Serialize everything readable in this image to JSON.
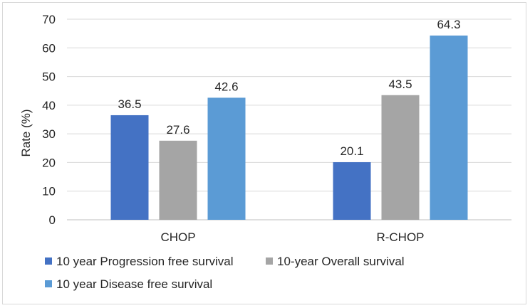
{
  "chart_data": {
    "type": "bar",
    "title": "",
    "xlabel": "",
    "ylabel": "Rate (%)",
    "categories": [
      "CHOP",
      "R-CHOP"
    ],
    "ylim": [
      0,
      70
    ],
    "ytick_step": 10,
    "grid": true,
    "legend_position": "bottom",
    "series": [
      {
        "name": "10 year Progression free survival",
        "values": [
          36.5,
          20.1
        ],
        "color": "#4472c4"
      },
      {
        "name": "10-year Overall survival",
        "values": [
          27.6,
          43.5
        ],
        "color": "#a5a5a5"
      },
      {
        "name": "10 year Disease free survival",
        "values": [
          42.6,
          64.3
        ],
        "color": "#5b9bd5"
      }
    ]
  }
}
